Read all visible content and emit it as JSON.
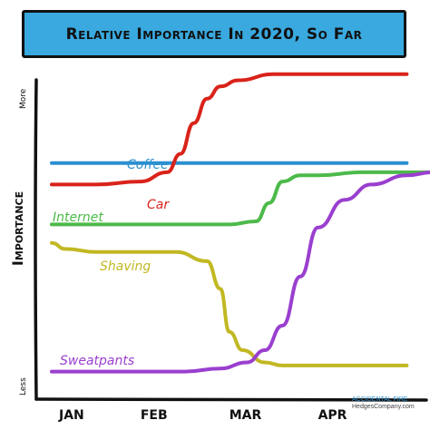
{
  "chart_data": {
    "type": "line",
    "title": "Relative Importance In 2020, So Far",
    "ylabel": "Importance",
    "y_axis_top_label": "More",
    "y_axis_bottom_label": "Less",
    "categories": [
      "Jan",
      "Feb",
      "Mar",
      "Apr"
    ],
    "x_range": [
      0,
      4.2
    ],
    "y_range": [
      0,
      100
    ],
    "series": [
      {
        "name": "Coffee",
        "color": "#2b8fd0",
        "x": [
          0,
          0.5,
          1,
          1.5,
          2,
          2.5,
          3,
          3.5,
          4.0
        ],
        "y": [
          69,
          69,
          69,
          69,
          69,
          69,
          69,
          69,
          69
        ]
      },
      {
        "name": "Car",
        "color": "#d9231a",
        "x": [
          0,
          0.5,
          1,
          1.3,
          1.45,
          1.6,
          1.75,
          1.9,
          2.1,
          2.5,
          3,
          3.5,
          4.0
        ],
        "y": [
          62,
          62,
          63,
          66,
          72,
          82,
          90,
          94,
          96,
          98,
          98,
          98,
          98
        ]
      },
      {
        "name": "Internet",
        "color": "#4cba4a",
        "x": [
          0,
          0.5,
          1,
          1.5,
          2,
          2.3,
          2.45,
          2.6,
          2.8,
          3,
          3.5,
          4.0,
          4.3
        ],
        "y": [
          49,
          49,
          49,
          49,
          49,
          50,
          56,
          63,
          65,
          65,
          66,
          66,
          66
        ]
      },
      {
        "name": "Shaving",
        "color": "#c1b823",
        "x": [
          0,
          0.15,
          0.5,
          1,
          1.4,
          1.75,
          1.9,
          2.0,
          2.15,
          2.4,
          2.6,
          3,
          3.5,
          4.0
        ],
        "y": [
          43,
          41,
          40,
          40,
          40,
          37,
          28,
          14,
          8,
          4,
          3,
          3,
          3,
          3
        ]
      },
      {
        "name": "Sweatpants",
        "color": "#9a3fcf",
        "x": [
          0,
          0.5,
          1,
          1.5,
          1.9,
          2.2,
          2.4,
          2.6,
          2.8,
          3.0,
          3.3,
          3.6,
          4.0,
          4.3
        ],
        "y": [
          1,
          1,
          1,
          1,
          2,
          4,
          8,
          16,
          32,
          48,
          57,
          62,
          65,
          66
        ]
      }
    ],
    "series_label_text": [
      "Coffee",
      "Car",
      "Internet",
      "Shaving",
      "Sweatpants"
    ],
    "grid": false,
    "legend": "none"
  },
  "credit": {
    "line1": "ACCIDENTAL FIRE",
    "line2": "HedgesCompany.com"
  }
}
